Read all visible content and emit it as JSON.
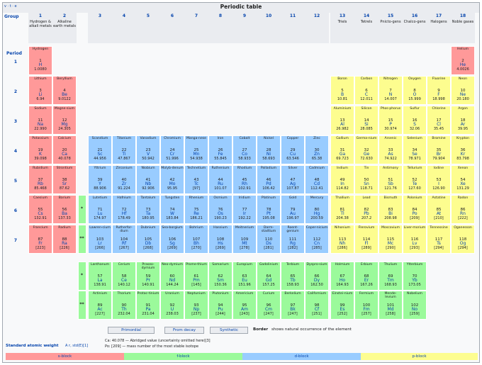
{
  "header": {
    "title": "Periodic table",
    "vte": "v · t · e",
    "group_label": "Group",
    "period_label": "Period"
  },
  "groups": [
    {
      "num": "1",
      "name": "Hydrogen & alkali metals"
    },
    {
      "num": "2",
      "name": "Alkaline earth metals"
    },
    {
      "num": "3",
      "name": ""
    },
    {
      "num": "4",
      "name": ""
    },
    {
      "num": "5",
      "name": ""
    },
    {
      "num": "6",
      "name": ""
    },
    {
      "num": "7",
      "name": ""
    },
    {
      "num": "8",
      "name": ""
    },
    {
      "num": "9",
      "name": ""
    },
    {
      "num": "10",
      "name": ""
    },
    {
      "num": "11",
      "name": ""
    },
    {
      "num": "12",
      "name": ""
    },
    {
      "num": "13",
      "name": "Triels"
    },
    {
      "num": "14",
      "name": "Tetrels"
    },
    {
      "num": "15",
      "name": "Pnicto-gens"
    },
    {
      "num": "16",
      "name": "Chalco-gens"
    },
    {
      "num": "17",
      "name": "Halogens"
    },
    {
      "num": "18",
      "name": "Noble gases"
    }
  ],
  "periods": [
    "1",
    "2",
    "3",
    "4",
    "5",
    "6",
    "7"
  ],
  "markers": {
    "lanthanide": "*",
    "actinide": "**"
  },
  "elements": [
    [
      "Hydrogen",
      "1",
      "H",
      "1.0080",
      "s",
      1,
      1
    ],
    [
      "Helium",
      "2",
      "He",
      "4.0026",
      "s",
      1,
      18
    ],
    [
      "Lithium",
      "3",
      "Li",
      "6.94",
      "s",
      2,
      1
    ],
    [
      "Beryllium",
      "4",
      "Be",
      "9.0122",
      "s",
      2,
      2
    ],
    [
      "Boron",
      "5",
      "B",
      "10.81",
      "p",
      2,
      13
    ],
    [
      "Carbon",
      "6",
      "C",
      "12.011",
      "p",
      2,
      14
    ],
    [
      "Nitrogen",
      "7",
      "N",
      "14.007",
      "p",
      2,
      15
    ],
    [
      "Oxygen",
      "8",
      "O",
      "15.999",
      "p",
      2,
      16
    ],
    [
      "Fluorine",
      "9",
      "F",
      "18.998",
      "p",
      2,
      17
    ],
    [
      "Neon",
      "10",
      "Ne",
      "20.180",
      "p",
      2,
      18
    ],
    [
      "Sodium",
      "11",
      "Na",
      "22.990",
      "s",
      3,
      1
    ],
    [
      "Magne-sium",
      "12",
      "Mg",
      "24.305",
      "s",
      3,
      2
    ],
    [
      "Aluminium",
      "13",
      "Al",
      "26.982",
      "p",
      3,
      13
    ],
    [
      "Silicon",
      "14",
      "Si",
      "28.085",
      "p",
      3,
      14
    ],
    [
      "Phos-phorus",
      "15",
      "P",
      "30.974",
      "p",
      3,
      15
    ],
    [
      "Sulfur",
      "16",
      "S",
      "32.06",
      "p",
      3,
      16
    ],
    [
      "Chlorine",
      "17",
      "Cl",
      "35.45",
      "p",
      3,
      17
    ],
    [
      "Argon",
      "18",
      "Ar",
      "39.95",
      "p",
      3,
      18
    ],
    [
      "Potassium",
      "19",
      "K",
      "39.098",
      "s",
      4,
      1
    ],
    [
      "Calcium",
      "20",
      "Ca",
      "40.078",
      "s",
      4,
      2
    ],
    [
      "Scandium",
      "21",
      "Sc",
      "44.956",
      "d",
      4,
      3
    ],
    [
      "Titanium",
      "22",
      "Ti",
      "47.867",
      "d",
      4,
      4
    ],
    [
      "Vanadium",
      "23",
      "V",
      "50.942",
      "d",
      4,
      5
    ],
    [
      "Chromium",
      "24",
      "Cr",
      "51.996",
      "d",
      4,
      6
    ],
    [
      "Manga-nese",
      "25",
      "Mn",
      "54.938",
      "d",
      4,
      7
    ],
    [
      "Iron",
      "26",
      "Fe",
      "55.845",
      "d",
      4,
      8
    ],
    [
      "Cobalt",
      "27",
      "Co",
      "58.933",
      "d",
      4,
      9
    ],
    [
      "Nickel",
      "28",
      "Ni",
      "58.693",
      "d",
      4,
      10
    ],
    [
      "Copper",
      "29",
      "Cu",
      "63.546",
      "d",
      4,
      11
    ],
    [
      "Zinc",
      "30",
      "Zn",
      "65.38",
      "d",
      4,
      12
    ],
    [
      "Gallium",
      "31",
      "Ga",
      "69.723",
      "p",
      4,
      13
    ],
    [
      "Germa-nium",
      "32",
      "Ge",
      "72.630",
      "p",
      4,
      14
    ],
    [
      "Arsenic",
      "33",
      "As",
      "74.922",
      "p",
      4,
      15
    ],
    [
      "Selenium",
      "34",
      "Se",
      "78.971",
      "p",
      4,
      16
    ],
    [
      "Bromine",
      "35",
      "Br",
      "79.904",
      "p",
      4,
      17
    ],
    [
      "Krypton",
      "36",
      "Kr",
      "83.798",
      "p",
      4,
      18
    ],
    [
      "Rubidium",
      "37",
      "Rb",
      "85.468",
      "s",
      5,
      1
    ],
    [
      "Strontium",
      "38",
      "Sr",
      "87.62",
      "s",
      5,
      2
    ],
    [
      "Yttrium",
      "39",
      "Y",
      "88.906",
      "d",
      5,
      3
    ],
    [
      "Zirconium",
      "40",
      "Zr",
      "91.224",
      "d",
      5,
      4
    ],
    [
      "Niobium",
      "41",
      "Nb",
      "92.906",
      "d",
      5,
      5
    ],
    [
      "Molyb-denum",
      "42",
      "Mo",
      "95.95",
      "d",
      5,
      6
    ],
    [
      "Technetium",
      "43",
      "Tc",
      "[97]",
      "d",
      5,
      7
    ],
    [
      "Ruthenium",
      "44",
      "Ru",
      "101.07",
      "d",
      5,
      8
    ],
    [
      "Rhodium",
      "45",
      "Rh",
      "102.91",
      "d",
      5,
      9
    ],
    [
      "Palladium",
      "46",
      "Pd",
      "106.42",
      "d",
      5,
      10
    ],
    [
      "Silver",
      "47",
      "Ag",
      "107.87",
      "d",
      5,
      11
    ],
    [
      "Cadmium",
      "48",
      "Cd",
      "112.41",
      "d",
      5,
      12
    ],
    [
      "Indium",
      "49",
      "In",
      "114.82",
      "p",
      5,
      13
    ],
    [
      "Tin",
      "50",
      "Sn",
      "118.71",
      "p",
      5,
      14
    ],
    [
      "Antimony",
      "51",
      "Sb",
      "121.76",
      "p",
      5,
      15
    ],
    [
      "Tellurium",
      "52",
      "Te",
      "127.60",
      "p",
      5,
      16
    ],
    [
      "Iodine",
      "53",
      "I",
      "126.90",
      "p",
      5,
      17
    ],
    [
      "Xenon",
      "54",
      "Xe",
      "131.29",
      "p",
      5,
      18
    ],
    [
      "Caesium",
      "55",
      "Cs",
      "132.91",
      "s",
      6,
      1
    ],
    [
      "Barium",
      "56",
      "Ba",
      "137.33",
      "s",
      6,
      2
    ],
    [
      "Lutetium",
      "71",
      "Lu",
      "174.97",
      "d",
      6,
      3
    ],
    [
      "Hafnium",
      "72",
      "Hf",
      "178.49",
      "d",
      6,
      4
    ],
    [
      "Tantalum",
      "73",
      "Ta",
      "180.95",
      "d",
      6,
      5
    ],
    [
      "Tungsten",
      "74",
      "W",
      "183.84",
      "d",
      6,
      6
    ],
    [
      "Rhenium",
      "75",
      "Re",
      "186.21",
      "d",
      6,
      7
    ],
    [
      "Osmium",
      "76",
      "Os",
      "190.23",
      "d",
      6,
      8
    ],
    [
      "Iridium",
      "77",
      "Ir",
      "192.22",
      "d",
      6,
      9
    ],
    [
      "Platinum",
      "78",
      "Pt",
      "195.08",
      "d",
      6,
      10
    ],
    [
      "Gold",
      "79",
      "Au",
      "196.97",
      "d",
      6,
      11
    ],
    [
      "Mercury",
      "80",
      "Hg",
      "200.59",
      "d",
      6,
      12
    ],
    [
      "Thallium",
      "81",
      "Tl",
      "204.38",
      "p",
      6,
      13
    ],
    [
      "Lead",
      "82",
      "Pb",
      "207.2",
      "p",
      6,
      14
    ],
    [
      "Bismuth",
      "83",
      "Bi",
      "208.98",
      "p",
      6,
      15
    ],
    [
      "Polonium",
      "84",
      "Po",
      "[209]",
      "p",
      6,
      16
    ],
    [
      "Astatine",
      "85",
      "At",
      "[210]",
      "p",
      6,
      17
    ],
    [
      "Radon",
      "86",
      "Rn",
      "[222]",
      "p",
      6,
      18
    ],
    [
      "Francium",
      "87",
      "Fr",
      "[223]",
      "s",
      7,
      1
    ],
    [
      "Radium",
      "88",
      "Ra",
      "[226]",
      "s",
      7,
      2
    ],
    [
      "Lawren-cium",
      "103",
      "Lr",
      "[266]",
      "d",
      7,
      3
    ],
    [
      "Rutherfor-dium",
      "104",
      "Rf",
      "[267]",
      "d",
      7,
      4
    ],
    [
      "Dubnium",
      "105",
      "Db",
      "[268]",
      "d",
      7,
      5
    ],
    [
      "Sea-borgium",
      "106",
      "Sg",
      "[269]",
      "d",
      7,
      6
    ],
    [
      "Bohrium",
      "107",
      "Bh",
      "[270]",
      "d",
      7,
      7
    ],
    [
      "Hassium",
      "108",
      "Hs",
      "[269]",
      "d",
      7,
      8
    ],
    [
      "Meitnerium",
      "109",
      "Mt",
      "[278]",
      "d",
      7,
      9
    ],
    [
      "Darm-stadtium",
      "110",
      "Ds",
      "[281]",
      "d",
      7,
      10
    ],
    [
      "Roent-genium",
      "111",
      "Rg",
      "[282]",
      "d",
      7,
      11
    ],
    [
      "Coper-nicium",
      "112",
      "Cn",
      "[285]",
      "d",
      7,
      12
    ],
    [
      "Nihonium",
      "113",
      "Nh",
      "[286]",
      "p",
      7,
      13
    ],
    [
      "Flerovium",
      "114",
      "Fl",
      "[289]",
      "p",
      7,
      14
    ],
    [
      "Moscovium",
      "115",
      "Mc",
      "[290]",
      "p",
      7,
      15
    ],
    [
      "Liver-morium",
      "116",
      "Lv",
      "[293]",
      "p",
      7,
      16
    ],
    [
      "Tennessine",
      "117",
      "Ts",
      "[294]",
      "p",
      7,
      17
    ],
    [
      "Oganesson",
      "118",
      "Og",
      "[294]",
      "p",
      7,
      18
    ],
    [
      "Lanthanum",
      "57",
      "La",
      "138.91",
      "f",
      8,
      3
    ],
    [
      "Cerium",
      "58",
      "Ce",
      "140.12",
      "f",
      8,
      4
    ],
    [
      "Praseo-dymium",
      "59",
      "Pr",
      "140.91",
      "f",
      8,
      5
    ],
    [
      "Neo-dymium",
      "60",
      "Nd",
      "144.24",
      "f",
      8,
      6
    ],
    [
      "Prome-thium",
      "61",
      "Pm",
      "[145]",
      "f",
      8,
      7
    ],
    [
      "Samarium",
      "62",
      "Sm",
      "150.36",
      "f",
      8,
      8
    ],
    [
      "Europium",
      "63",
      "Eu",
      "151.96",
      "f",
      8,
      9
    ],
    [
      "Gadolinium",
      "64",
      "Gd",
      "157.25",
      "f",
      8,
      10
    ],
    [
      "Terbium",
      "65",
      "Tb",
      "158.93",
      "f",
      8,
      11
    ],
    [
      "Dyspro-sium",
      "66",
      "Dy",
      "162.50",
      "f",
      8,
      12
    ],
    [
      "Holmium",
      "67",
      "Ho",
      "164.93",
      "f",
      8,
      13
    ],
    [
      "Erbium",
      "68",
      "Er",
      "167.26",
      "f",
      8,
      14
    ],
    [
      "Thulium",
      "69",
      "Tm",
      "168.93",
      "f",
      8,
      15
    ],
    [
      "Ytterbium",
      "70",
      "Yb",
      "173.05",
      "f",
      8,
      16
    ],
    [
      "Actinium",
      "89",
      "Ac",
      "[227]",
      "f",
      9,
      3
    ],
    [
      "Thorium",
      "90",
      "Th",
      "232.04",
      "f",
      9,
      4
    ],
    [
      "Protac-tinium",
      "91",
      "Pa",
      "231.04",
      "f",
      9,
      5
    ],
    [
      "Uranium",
      "92",
      "U",
      "238.03",
      "f",
      9,
      6
    ],
    [
      "Neptunium",
      "93",
      "Np",
      "[237]",
      "f",
      9,
      7
    ],
    [
      "Plutonium",
      "94",
      "Pu",
      "[244]",
      "f",
      9,
      8
    ],
    [
      "Americium",
      "95",
      "Am",
      "[243]",
      "f",
      9,
      9
    ],
    [
      "Curium",
      "96",
      "Cm",
      "[247]",
      "f",
      9,
      10
    ],
    [
      "Berkelium",
      "97",
      "Bk",
      "[247]",
      "f",
      9,
      11
    ],
    [
      "Californium",
      "98",
      "Cf",
      "[251]",
      "f",
      9,
      12
    ],
    [
      "Einstei-nium",
      "99",
      "Es",
      "[252]",
      "f",
      9,
      13
    ],
    [
      "Fermium",
      "100",
      "Fm",
      "[257]",
      "f",
      9,
      14
    ],
    [
      "Mende-levium",
      "101",
      "Md",
      "[258]",
      "f",
      9,
      15
    ],
    [
      "Nobelium",
      "102",
      "No",
      "[259]",
      "f",
      9,
      16
    ]
  ],
  "legend": {
    "primordial": "Primordial",
    "from_decay": "From decay",
    "synthetic": "Synthetic",
    "border_note_bold": "Border",
    "border_note": "shows natural occurrence of the element"
  },
  "weight_note": {
    "label": "Standard atomic weight",
    "formula": "A r, std(E)[1]",
    "line1": "Ca: 40.078 — Abridged value (uncertainty omitted here)[3]",
    "line2": "Po: [209] — mass number of the most stable isotope"
  },
  "blocks": [
    "s-block",
    "f-block",
    "d-block",
    "p-block"
  ],
  "colors": {
    "s": "#ff9999",
    "p": "#fdfd8f",
    "d": "#99ccff",
    "f": "#9bfa9b"
  }
}
